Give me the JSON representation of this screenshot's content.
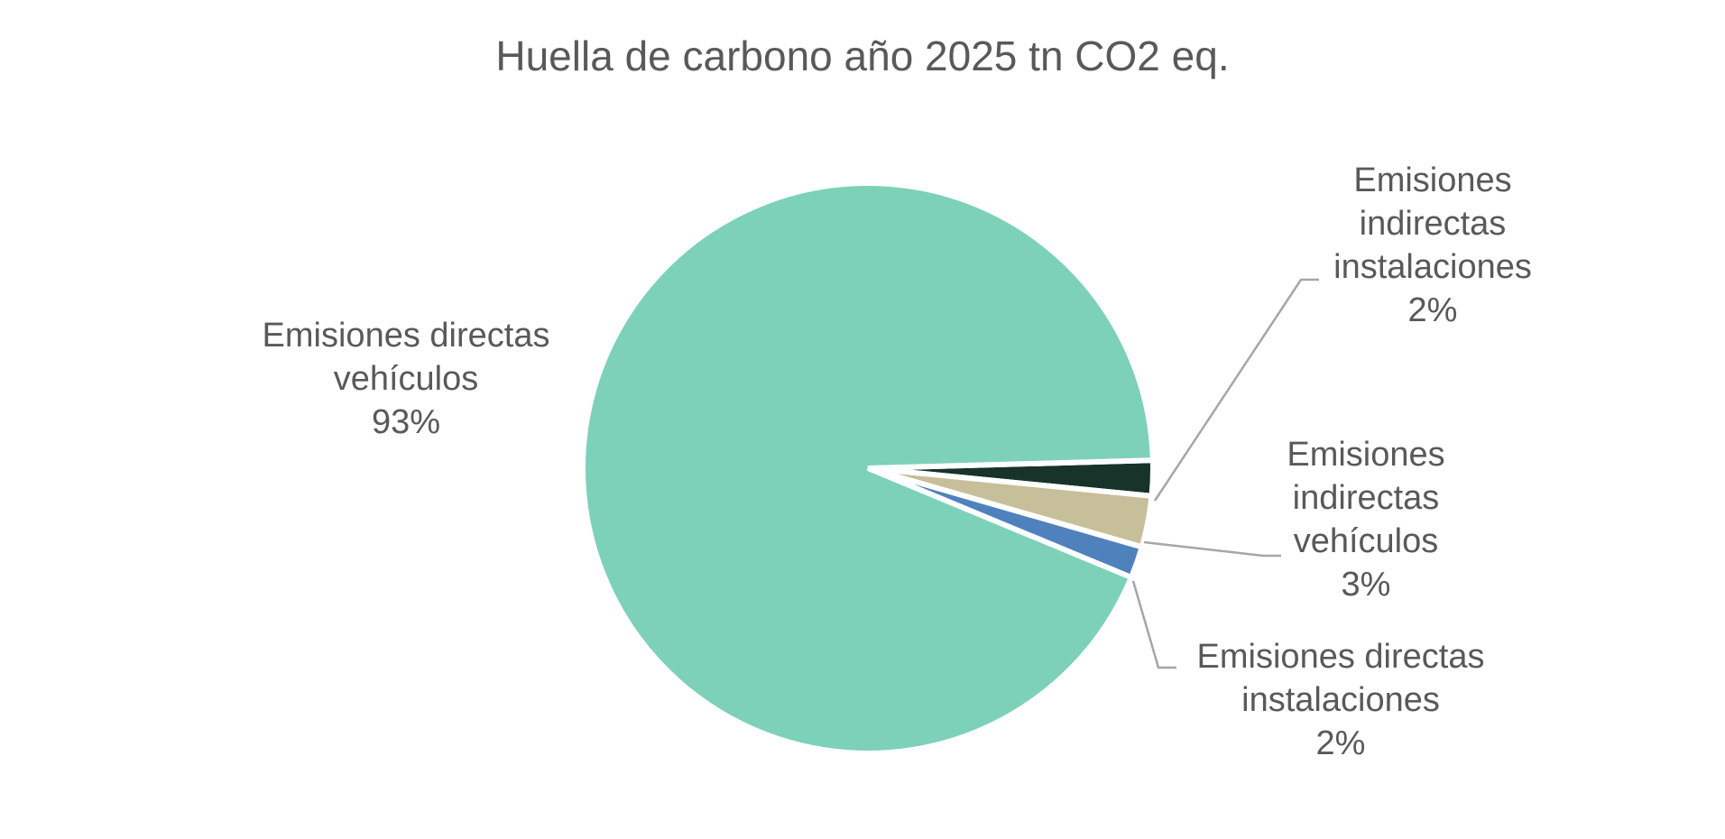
{
  "chart_data": {
    "type": "pie",
    "title": "Huella de carbono año 2025 tn CO2 eq.",
    "slices": [
      {
        "name": "Emisiones directas vehículos",
        "label_lines": [
          "Emisiones directas",
          "vehículos"
        ],
        "percent_label": "93%",
        "value": 93.3,
        "color": "#7dd1b9"
      },
      {
        "name": "Emisiones indirectas instalaciones",
        "label_lines": [
          "Emisiones",
          "indirectas",
          "instalaciones"
        ],
        "percent_label": "2%",
        "value": 2.0,
        "color": "#17332a"
      },
      {
        "name": "Emisiones indirectas vehículos",
        "label_lines": [
          "Emisiones",
          "indirectas",
          "vehículos"
        ],
        "percent_label": "3%",
        "value": 2.9,
        "color": "#c6bf9a"
      },
      {
        "name": "Emisiones directas instalaciones",
        "label_lines": [
          "Emisiones directas",
          "instalaciones"
        ],
        "percent_label": "2%",
        "value": 1.8,
        "color": "#4f81bd"
      }
    ],
    "legend": "none",
    "data_labels": "outside-with-leader-lines"
  }
}
